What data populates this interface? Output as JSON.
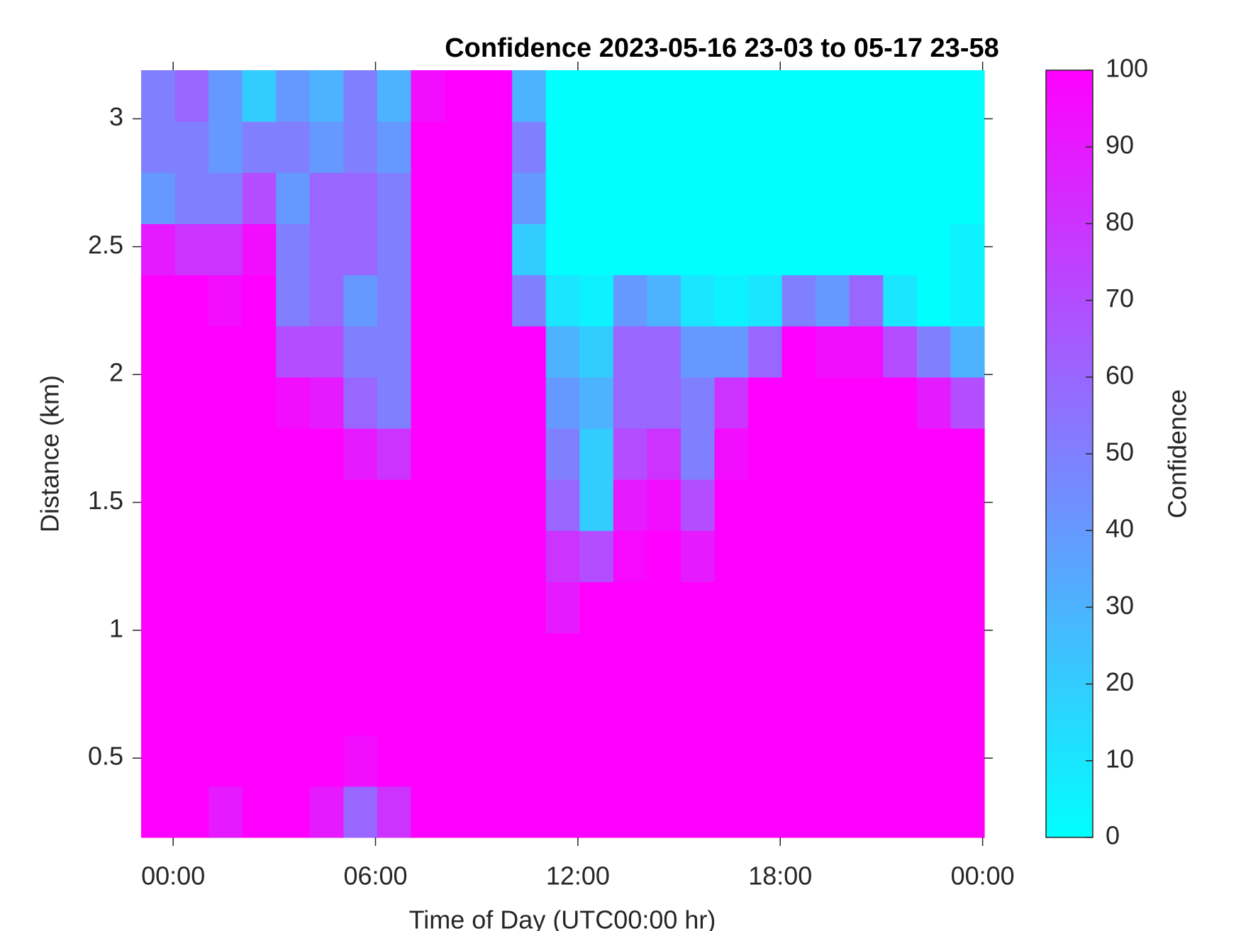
{
  "chart_data": {
    "type": "heatmap",
    "title": "Confidence 2023-05-16 23-03 to 05-17 23-58",
    "xlabel": "Time of Day (UTC00:00 hr)",
    "ylabel": "Distance (km)",
    "colorbar_label": "Confidence",
    "colormap": [
      "#00ffff",
      "#ff00ff"
    ],
    "clim": [
      0,
      100
    ],
    "cticks": [
      0,
      10,
      20,
      30,
      40,
      50,
      60,
      70,
      80,
      90,
      100
    ],
    "xlim": [
      -0.95,
      24.05
    ],
    "xticks": [
      {
        "value": 0,
        "label": "00:00"
      },
      {
        "value": 6,
        "label": "06:00"
      },
      {
        "value": 12,
        "label": "12:00"
      },
      {
        "value": 18,
        "label": "18:00"
      },
      {
        "value": 24,
        "label": "00:00"
      }
    ],
    "ylim": [
      0.19,
      3.19
    ],
    "yticks": [
      0.5,
      1,
      1.5,
      2,
      2.5,
      3
    ],
    "xbins": [
      -0.95,
      0.05,
      1.05,
      2.05,
      3.05,
      4.05,
      5.05,
      6.05,
      7.05,
      8.05,
      9.05,
      10.05,
      11.05,
      12.05,
      13.05,
      14.05,
      15.05,
      16.05,
      17.05,
      18.05,
      19.05,
      20.05,
      21.05,
      22.05,
      23.05,
      24.05
    ],
    "ybins": [
      0.19,
      0.39,
      0.59,
      0.79,
      0.99,
      1.19,
      1.39,
      1.59,
      1.79,
      1.99,
      2.19,
      2.39,
      2.59,
      2.79,
      2.99,
      3.19
    ],
    "z": [
      [
        100,
        100,
        90,
        100,
        100,
        90,
        60,
        80,
        100,
        100,
        100,
        100,
        100,
        100,
        100,
        100,
        100,
        100,
        100,
        100,
        100,
        100,
        100,
        100,
        100
      ],
      [
        100,
        100,
        100,
        100,
        100,
        100,
        95,
        100,
        100,
        100,
        100,
        100,
        100,
        100,
        100,
        100,
        100,
        100,
        100,
        100,
        100,
        100,
        100,
        100,
        100
      ],
      [
        100,
        100,
        100,
        100,
        100,
        100,
        100,
        100,
        100,
        100,
        100,
        100,
        100,
        100,
        100,
        100,
        100,
        100,
        100,
        100,
        100,
        100,
        100,
        100,
        100
      ],
      [
        100,
        100,
        100,
        100,
        100,
        100,
        100,
        100,
        100,
        100,
        100,
        100,
        100,
        100,
        100,
        100,
        100,
        100,
        100,
        100,
        100,
        100,
        100,
        100,
        100
      ],
      [
        100,
        100,
        100,
        100,
        100,
        100,
        100,
        100,
        100,
        100,
        100,
        100,
        90,
        100,
        100,
        100,
        100,
        100,
        100,
        100,
        100,
        100,
        100,
        100,
        100
      ],
      [
        100,
        100,
        100,
        100,
        100,
        100,
        100,
        100,
        100,
        100,
        100,
        100,
        80,
        70,
        97,
        100,
        90,
        100,
        100,
        100,
        100,
        100,
        100,
        100,
        100
      ],
      [
        100,
        100,
        100,
        100,
        100,
        100,
        100,
        100,
        100,
        100,
        100,
        100,
        60,
        20,
        90,
        95,
        70,
        100,
        100,
        100,
        100,
        100,
        100,
        100,
        100
      ],
      [
        100,
        100,
        100,
        100,
        100,
        100,
        90,
        80,
        100,
        100,
        100,
        100,
        50,
        20,
        70,
        80,
        50,
        95,
        100,
        100,
        100,
        100,
        100,
        100,
        100
      ],
      [
        100,
        100,
        100,
        100,
        95,
        90,
        60,
        50,
        100,
        100,
        100,
        100,
        40,
        30,
        60,
        60,
        50,
        80,
        100,
        100,
        100,
        100,
        100,
        90,
        70
      ],
      [
        100,
        100,
        100,
        100,
        70,
        70,
        50,
        50,
        100,
        100,
        100,
        100,
        30,
        20,
        60,
        60,
        40,
        40,
        60,
        100,
        95,
        95,
        70,
        50,
        30
      ],
      [
        100,
        100,
        95,
        100,
        50,
        60,
        40,
        50,
        100,
        100,
        100,
        50,
        10,
        5,
        40,
        30,
        10,
        5,
        10,
        50,
        40,
        60,
        10,
        0,
        5
      ],
      [
        90,
        80,
        80,
        95,
        50,
        60,
        60,
        50,
        100,
        100,
        100,
        20,
        0,
        0,
        0,
        0,
        0,
        0,
        0,
        0,
        0,
        0,
        0,
        0,
        5
      ],
      [
        40,
        50,
        50,
        70,
        40,
        60,
        60,
        50,
        100,
        100,
        100,
        40,
        0,
        0,
        0,
        0,
        0,
        0,
        0,
        0,
        0,
        0,
        0,
        0,
        0
      ],
      [
        50,
        50,
        40,
        50,
        50,
        40,
        50,
        40,
        100,
        100,
        100,
        50,
        0,
        0,
        0,
        0,
        0,
        0,
        0,
        0,
        0,
        0,
        0,
        0,
        0
      ],
      [
        50,
        60,
        40,
        20,
        40,
        30,
        50,
        30,
        95,
        100,
        100,
        30,
        0,
        0,
        0,
        0,
        0,
        0,
        0,
        0,
        0,
        0,
        0,
        0,
        0
      ]
    ]
  }
}
